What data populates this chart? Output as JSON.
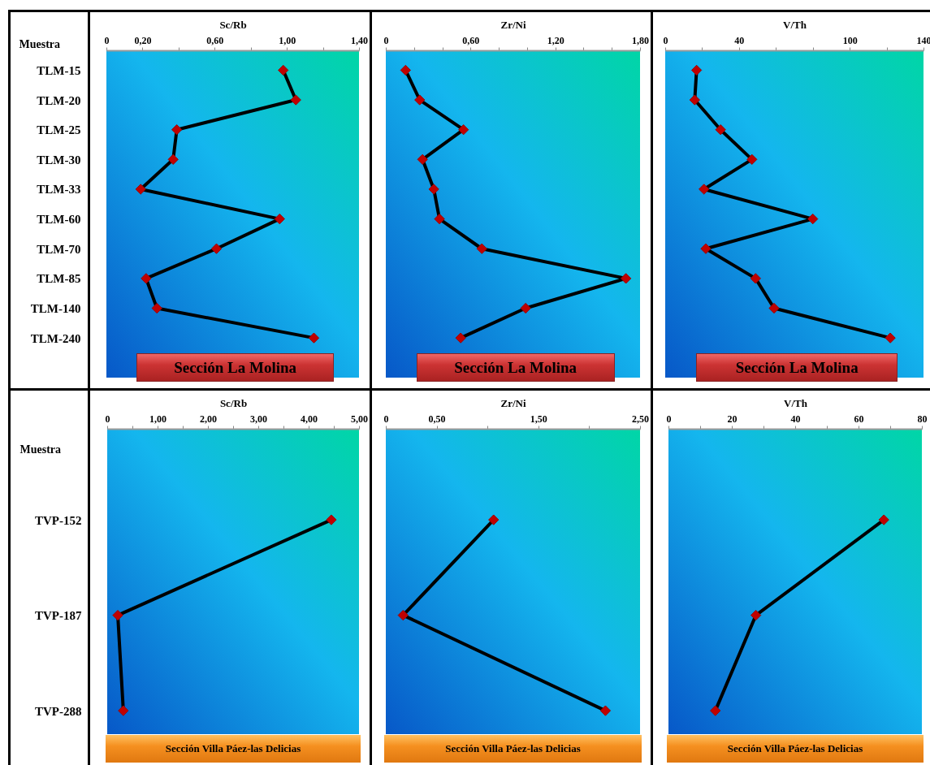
{
  "chart_data": [
    {
      "type": "line",
      "orientation": "horizontal",
      "xlabel": "Sc/Rb",
      "ylabel": "Muestra",
      "categories": [
        "TLM-15",
        "TLM-20",
        "TLM-25",
        "TLM-30",
        "TLM-33",
        "TLM-60",
        "TLM-70",
        "TLM-85",
        "TLM-140",
        "TLM-240"
      ],
      "series": [
        {
          "color": "#000000",
          "values": [
            0.98,
            1.05,
            0.39,
            0.37,
            0.19,
            0.96,
            0.61,
            0.22,
            0.28,
            1.15
          ]
        }
      ],
      "xlim": [
        0,
        1.4
      ],
      "xticks": [
        0,
        {
          "value": 0.2,
          "label": "0,20"
        },
        {
          "value": 0.4,
          "label": null
        },
        {
          "value": 0.6,
          "label": "0,60"
        },
        {
          "value": 0.8,
          "label": null
        },
        {
          "value": 1.0,
          "label": "1,00"
        },
        {
          "value": 1.2,
          "label": null
        },
        {
          "value": 1.4,
          "label": "1,40"
        }
      ],
      "marker": "diamond",
      "annotations": [
        "Sección La Molina"
      ]
    },
    {
      "type": "line",
      "orientation": "horizontal",
      "xlabel": "Zr/Ni",
      "categories": [
        null,
        null,
        null,
        null,
        null,
        null,
        null,
        null,
        null,
        null
      ],
      "series": [
        {
          "color": "#000000",
          "values": [
            0.14,
            0.24,
            0.55,
            0.26,
            0.34,
            0.38,
            0.68,
            1.7,
            0.99,
            0.53
          ]
        }
      ],
      "xlim": [
        0,
        1.8
      ],
      "xticks": [
        0,
        {
          "value": 0.2,
          "label": null
        },
        {
          "value": 0.4,
          "label": null
        },
        {
          "value": 0.6,
          "label": "0,60"
        },
        {
          "value": 0.8,
          "label": null
        },
        {
          "value": 1.0,
          "label": null
        },
        {
          "value": 1.2,
          "label": "1,20"
        },
        {
          "value": 1.4,
          "label": null
        },
        {
          "value": 1.6,
          "label": null
        },
        {
          "value": 1.8,
          "label": "1,80"
        }
      ],
      "marker": "diamond",
      "tick_labels": "x",
      "annotations": [
        "Sección La Molina"
      ]
    },
    {
      "type": "line",
      "orientation": "horizontal",
      "xlabel": "V/Th",
      "categories": [
        null,
        null,
        null,
        null,
        null,
        null,
        null,
        null,
        null,
        null
      ],
      "series": [
        {
          "color": "#000000",
          "values": [
            17,
            16,
            30,
            47,
            21,
            80,
            22,
            49,
            59,
            122
          ]
        }
      ],
      "xlim": [
        0,
        140
      ],
      "xticks": [
        0,
        {
          "value": 20,
          "label": null
        },
        40,
        {
          "value": 60,
          "label": null
        },
        {
          "value": 80,
          "label": null
        },
        100,
        {
          "value": 120,
          "label": null
        },
        140
      ],
      "marker": "diamond",
      "tick_labels": "x",
      "annotations": [
        "Sección La Molina"
      ]
    },
    {
      "type": "line",
      "orientation": "horizontal",
      "xlabel": "Sc/Rb",
      "ylabel": "Muestra",
      "categories": [
        "TVP-152",
        "TVP-187",
        "TVP-288"
      ],
      "series": [
        {
          "color": "#000000",
          "values": [
            4.45,
            0.21,
            0.32
          ]
        }
      ],
      "xlim": [
        0,
        5
      ],
      "xticks": [
        0,
        {
          "value": 0.5,
          "label": null
        },
        {
          "value": 1,
          "label": "1,00"
        },
        {
          "value": 1.5,
          "label": null
        },
        {
          "value": 2,
          "label": "2,00"
        },
        {
          "value": 2.5,
          "label": null
        },
        {
          "value": 3,
          "label": "3,00"
        },
        {
          "value": 3.5,
          "label": null
        },
        {
          "value": 4,
          "label": "4,00"
        },
        {
          "value": 4.5,
          "label": null
        },
        {
          "value": 5,
          "label": "5,00"
        }
      ],
      "marker": "diamond",
      "annotations": [
        "Sección Villa Páez-las Delicias"
      ]
    },
    {
      "type": "line",
      "orientation": "horizontal",
      "xlabel": "Zr/Ni",
      "categories": [
        null,
        null,
        null
      ],
      "series": [
        {
          "color": "#000000",
          "values": [
            1.06,
            0.17,
            2.16
          ]
        }
      ],
      "xlim": [
        0,
        2.5
      ],
      "xticks": [
        0,
        {
          "value": 0.5,
          "label": "0,50"
        },
        {
          "value": 1,
          "label": null
        },
        {
          "value": 1.5,
          "label": "1,50"
        },
        {
          "value": 2,
          "label": null
        },
        {
          "value": 2.5,
          "label": "2,50"
        }
      ],
      "marker": "diamond",
      "tick_labels": "x",
      "annotations": [
        "Sección Villa Páez-las Delicias"
      ]
    },
    {
      "type": "line",
      "orientation": "horizontal",
      "xlabel": "V/Th",
      "categories": [
        null,
        null,
        null
      ],
      "series": [
        {
          "color": "#000000",
          "values": [
            68,
            27.6,
            14.8
          ]
        }
      ],
      "xlim": [
        0,
        80
      ],
      "xticks": [
        0,
        {
          "value": 10,
          "label": null
        },
        20,
        {
          "value": 30,
          "label": null
        },
        40,
        {
          "value": 50,
          "label": null
        },
        60,
        {
          "value": 70,
          "label": null
        },
        80
      ],
      "marker": "diamond",
      "tick_labels": "x",
      "annotations": [
        "Sección Villa Páez-las Delicias"
      ]
    }
  ]
}
